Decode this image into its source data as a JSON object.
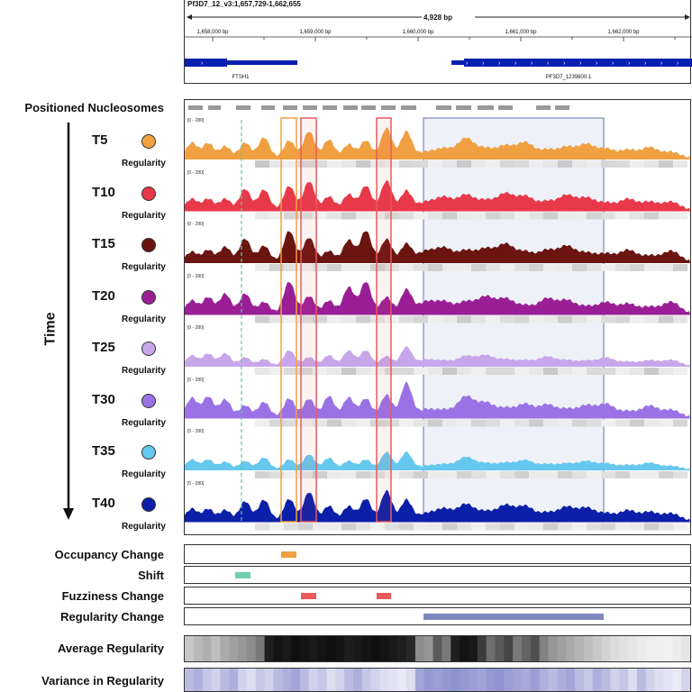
{
  "header": {
    "locus": "Pf3D7_12_v3:1,657,729-1,662,655",
    "span": "4,928 bp",
    "ticks": [
      "1,658,000 bp",
      "1,659,000 bp",
      "1,660,000 bp",
      "1,661,000 bp",
      "1,662,000 bp"
    ],
    "genes": [
      "FTSH1",
      "PF3D7_1239800.1"
    ]
  },
  "labels": {
    "positioned_nucleosomes": "Positioned Nucleosomes",
    "time": "Time",
    "regularity": "Regularity",
    "range": "[0 - 280]",
    "occupancy_change": "Occupancy Change",
    "shift": "Shift",
    "fuzziness_change": "Fuzziness Change",
    "regularity_change": "Regularity Change",
    "average_regularity": "Average Regularity",
    "variance_in_regularity": "Variance in Regularity"
  },
  "timepoints": [
    {
      "name": "T5",
      "color": "#f0a040"
    },
    {
      "name": "T10",
      "color": "#e8394a"
    },
    {
      "name": "T15",
      "color": "#6b1410"
    },
    {
      "name": "T20",
      "color": "#9a1f96"
    },
    {
      "name": "T25",
      "color": "#c8a6ea"
    },
    {
      "name": "T30",
      "color": "#9a72e6"
    },
    {
      "name": "T35",
      "color": "#66c8ee"
    },
    {
      "name": "T40",
      "color": "#0b1fa8"
    }
  ],
  "colors": {
    "occupancy": "#f0a040",
    "shift": "#6fcfaa",
    "fuzziness": "#ea5a5a",
    "regularity_change": "#7f86bf",
    "nucleosome": "#999999"
  }
}
